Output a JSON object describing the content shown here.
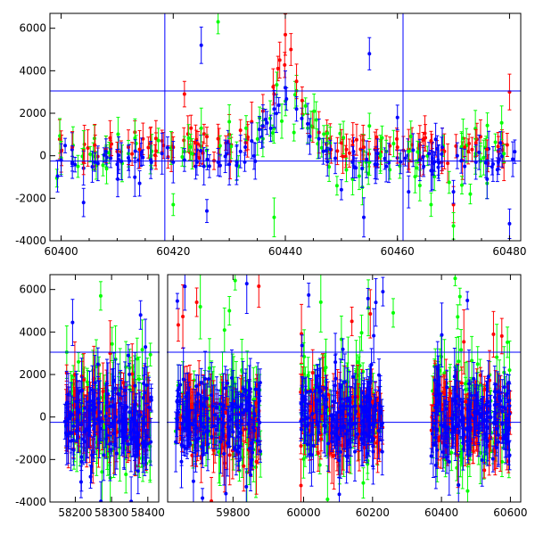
{
  "chart_data": [
    {
      "type": "scatter",
      "title": "",
      "xlabel": "",
      "ylabel": "",
      "xlim": [
        60398,
        60482
      ],
      "ylim": [
        -4000,
        6700
      ],
      "x_ticks": [
        60400,
        60420,
        60440,
        60460,
        60480
      ],
      "y_ticks": [
        -4000,
        -2000,
        0,
        2000,
        4000,
        6000
      ],
      "hlines": [
        3050,
        -250
      ],
      "vlines": [
        60418.5,
        60461
      ],
      "grid": false,
      "colors": {
        "red": "#ff0000",
        "green": "#00ff00",
        "blue": "#0000ff",
        "axis": "#000000",
        "line": "#0000ff"
      },
      "series": [
        {
          "color": "red",
          "x": [
            60400,
            60402,
            60404,
            60406,
            60408,
            60410,
            60412,
            60414,
            60416,
            60418,
            60420,
            60422,
            60424,
            60426,
            60428,
            60430,
            60432,
            60434,
            60436,
            60438,
            60439,
            60440,
            60441,
            60442,
            60443,
            60444,
            60446,
            60448,
            60450,
            60452,
            60454,
            60456,
            60458,
            60460,
            60462,
            60464,
            60466,
            60468,
            60470,
            60472,
            60474,
            60476,
            60478,
            60480
          ],
          "y": [
            200,
            400,
            -300,
            500,
            300,
            200,
            400,
            300,
            600,
            700,
            400,
            2900,
            600,
            900,
            800,
            1000,
            1200,
            1600,
            2100,
            2900,
            4500,
            5700,
            5000,
            3500,
            2600,
            1500,
            1100,
            800,
            600,
            500,
            400,
            300,
            200,
            400,
            300,
            500,
            700,
            300,
            -2300,
            400,
            600,
            300,
            200,
            3000
          ]
        },
        {
          "color": "green",
          "x": [
            60400,
            60403,
            60408,
            60412,
            60416,
            60420,
            60422,
            60425,
            60428,
            60430,
            60433,
            60436,
            60438,
            60444,
            60448,
            60452,
            60455,
            60458,
            60462,
            60464,
            60466,
            60470,
            60473,
            60476,
            60479
          ],
          "y": [
            -100,
            -500,
            200,
            100,
            0,
            -2300,
            200,
            1300,
            6300,
            1600,
            1300,
            800,
            -2900,
            1300,
            600,
            -1100,
            1400,
            200,
            200,
            -1400,
            -2300,
            -3300,
            -1800,
            -1300,
            100
          ]
        },
        {
          "color": "blue",
          "x": [
            60400,
            60402,
            60404,
            60406,
            60408,
            60410,
            60412,
            60414,
            60416,
            60418,
            60420,
            60422,
            60424,
            60425,
            60426,
            60428,
            60430,
            60432,
            60434,
            60436,
            60438,
            60440,
            60442,
            60444,
            60446,
            60448,
            60450,
            60452,
            60454,
            60455,
            60456,
            60458,
            60460,
            60462,
            60464,
            60466,
            60468,
            60470,
            60472,
            60474,
            60476,
            60478,
            60480
          ],
          "y": [
            -200,
            -300,
            -2200,
            -300,
            200,
            -400,
            -100,
            -1300,
            -200,
            100,
            -300,
            -200,
            -500,
            5200,
            -2600,
            -300,
            -400,
            200,
            700,
            1400,
            2200,
            3200,
            2200,
            1500,
            800,
            300,
            -1600,
            -300,
            -2900,
            4800,
            -400,
            -500,
            1800,
            -1700,
            -200,
            -700,
            400,
            -1700,
            -500,
            -300,
            -1100,
            -300,
            -3200
          ]
        }
      ]
    },
    {
      "type": "scatter",
      "title": "",
      "xlabel": "",
      "ylabel": "",
      "segments": [
        {
          "xlim": [
            58130,
            58430
          ],
          "x_ticks": [
            58200,
            58300,
            58400
          ]
        },
        {
          "xlim": [
            59620,
            59890
          ],
          "x_ticks": [
            59800
          ]
        },
        {
          "xlim": [
            59890,
            60630
          ],
          "x_ticks": [
            60000,
            60200,
            60400,
            60600
          ]
        }
      ],
      "ylim": [
        -4000,
        6700
      ],
      "y_ticks": [
        -4000,
        -2000,
        0,
        2000,
        4000,
        6000
      ],
      "hlines": [
        3050,
        -250
      ],
      "grid": false,
      "colors": {
        "red": "#ff0000",
        "green": "#00ff00",
        "blue": "#0000ff",
        "axis": "#000000",
        "line": "#0000ff"
      },
      "clusters": [
        {
          "x_min": 58170,
          "x_max": 58410,
          "spread_low": -4000,
          "spread_high": 5800
        },
        {
          "x_min": 59640,
          "x_max": 59880,
          "spread_low": -4000,
          "spread_high": 6600
        },
        {
          "x_min": 59990,
          "x_max": 60230,
          "spread_low": -4000,
          "spread_high": 6600
        },
        {
          "x_min": 60370,
          "x_max": 60600,
          "spread_low": -4000,
          "spread_high": 6600
        }
      ],
      "notable_points": [
        {
          "color": "green",
          "x": 58270,
          "y": 5700
        },
        {
          "color": "blue",
          "x": 58380,
          "y": 4800
        },
        {
          "color": "red",
          "x": 59700,
          "y": 5400
        },
        {
          "color": "green",
          "x": 59790,
          "y": 5000
        },
        {
          "color": "red",
          "x": 60140,
          "y": 4500
        },
        {
          "color": "green",
          "x": 60260,
          "y": 4900
        },
        {
          "color": "blue",
          "x": 60230,
          "y": 5900
        }
      ]
    }
  ]
}
